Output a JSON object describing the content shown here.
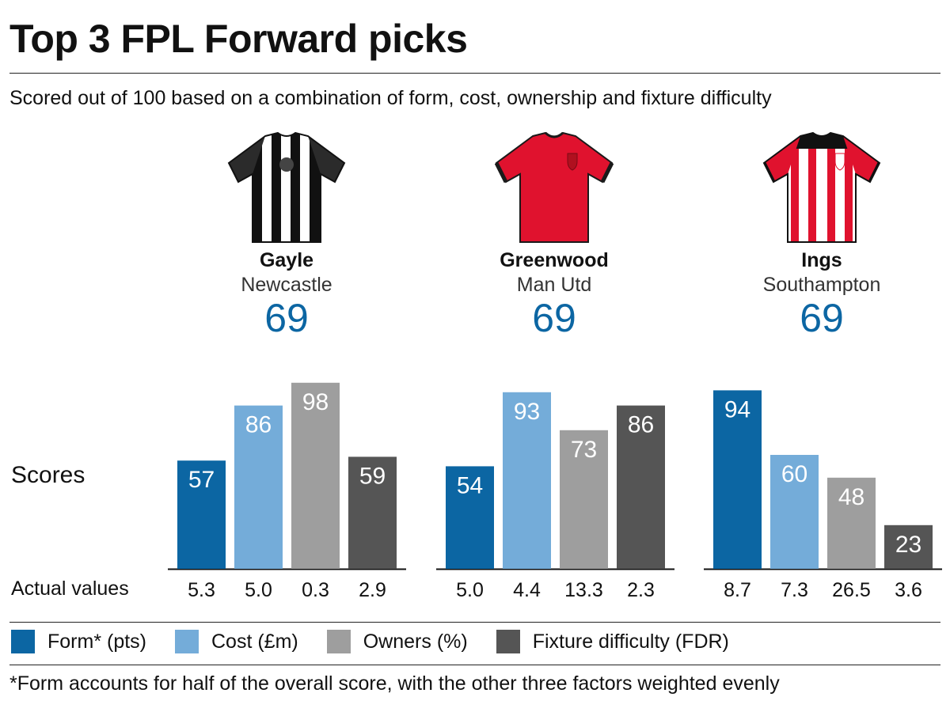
{
  "title": "Top 3 FPL Forward picks",
  "subtitle": "Scored out of 100 based on a combination of form, cost, ownership and fixture difficulty",
  "players": [
    {
      "name": "Gayle",
      "team": "Newcastle",
      "score": "69",
      "shirt": "newcastle-shirt-icon"
    },
    {
      "name": "Greenwood",
      "team": "Man Utd",
      "score": "69",
      "shirt": "man-utd-shirt-icon"
    },
    {
      "name": "Ings",
      "team": "Southampton",
      "score": "69",
      "shirt": "southampton-shirt-icon"
    }
  ],
  "labels": {
    "scores": "Scores",
    "actual": "Actual values"
  },
  "colors": {
    "form": "#0c66a3",
    "cost": "#74acd9",
    "owners": "#9e9e9e",
    "fixture": "#555555",
    "total": "#0c66a3"
  },
  "chart_data": {
    "type": "bar",
    "categories": [
      "Gayle",
      "Greenwood",
      "Ings"
    ],
    "ylim": [
      0,
      100
    ],
    "series": [
      {
        "name": "Form* (pts)",
        "values": [
          57,
          54,
          94
        ],
        "actual": [
          "5.3",
          "5.0",
          "8.7"
        ]
      },
      {
        "name": "Cost (£m)",
        "values": [
          86,
          93,
          60
        ],
        "actual": [
          "5.0",
          "4.4",
          "7.3"
        ]
      },
      {
        "name": "Owners (%)",
        "values": [
          98,
          73,
          48
        ],
        "actual": [
          "0.3",
          "13.3",
          "26.5"
        ]
      },
      {
        "name": "Fixture difficulty (FDR)",
        "values": [
          59,
          86,
          23
        ],
        "actual": [
          "2.9",
          "2.3",
          "3.6"
        ]
      }
    ]
  },
  "legend": [
    {
      "label": "Form* (pts)",
      "color": "#0c66a3"
    },
    {
      "label": "Cost (£m)",
      "color": "#74acd9"
    },
    {
      "label": "Owners (%)",
      "color": "#9e9e9e"
    },
    {
      "label": "Fixture difficulty (FDR)",
      "color": "#555555"
    }
  ],
  "footnote": "*Form accounts for half of the overall score, with the other three factors weighted evenly"
}
